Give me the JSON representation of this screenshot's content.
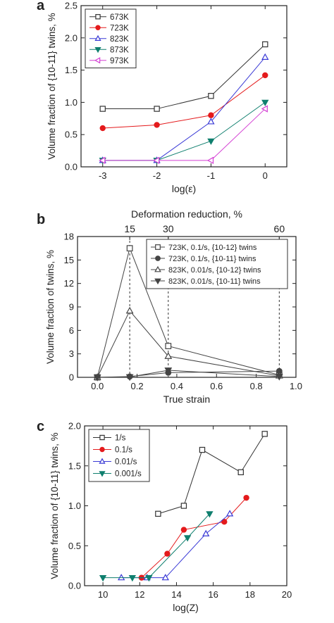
{
  "chart_data": [
    {
      "panel_label": "a",
      "type": "line",
      "xlabel": "log(ε)",
      "ylabel": "Volume fraction of {10-11} twins, %",
      "xlim": [
        -3.4,
        0.4
      ],
      "ylim": [
        0,
        2.5
      ],
      "xticks": [
        -3,
        -2,
        -1,
        0
      ],
      "xtick_labels": [
        "-3",
        "-2",
        "-1",
        "0"
      ],
      "yticks": [
        0,
        0.5,
        1.0,
        1.5,
        2.0,
        2.5
      ],
      "ytick_labels": [
        "0.0",
        "0.5",
        "1.0",
        "1.5",
        "2.0",
        "2.5"
      ],
      "legend_position": "top-left",
      "grid": false,
      "series": [
        {
          "name": "673K",
          "color": "#333333",
          "marker": "square-open",
          "x": [
            -3,
            -2,
            -1,
            0
          ],
          "y": [
            0.9,
            0.9,
            1.1,
            1.9
          ]
        },
        {
          "name": "723K",
          "color": "#e41a1c",
          "marker": "circle-filled",
          "x": [
            -3,
            -2,
            -1,
            0
          ],
          "y": [
            0.6,
            0.65,
            0.8,
            1.42
          ]
        },
        {
          "name": "823K",
          "color": "#3a3ad6",
          "marker": "triangle-up-open",
          "x": [
            -3,
            -2,
            -1,
            0
          ],
          "y": [
            0.1,
            0.1,
            0.7,
            1.7
          ]
        },
        {
          "name": "873K",
          "color": "#0f7f6e",
          "marker": "triangle-down-filled",
          "x": [
            -3,
            -2,
            -1,
            0
          ],
          "y": [
            0.1,
            0.1,
            0.4,
            1.0
          ]
        },
        {
          "name": "973K",
          "color": "#d43fd4",
          "marker": "triangle-left-open",
          "x": [
            -3,
            -2,
            -1,
            0
          ],
          "y": [
            0.1,
            0.1,
            0.1,
            0.9
          ]
        }
      ]
    },
    {
      "panel_label": "b",
      "type": "line",
      "xlabel": "True strain",
      "ylabel": "Volume fraction of twins, %",
      "top_axis_label": "Deformation reduction, %",
      "top_ticks": [
        {
          "x": 0.163,
          "label": "15"
        },
        {
          "x": 0.357,
          "label": "30"
        },
        {
          "x": 0.916,
          "label": "60"
        }
      ],
      "xlim": [
        -0.1,
        1.0
      ],
      "ylim": [
        0,
        18
      ],
      "xticks": [
        0.0,
        0.2,
        0.4,
        0.6,
        0.8,
        1.0
      ],
      "xtick_labels": [
        "0.0",
        "0.2",
        "0.4",
        "0.6",
        "0.8",
        "1.0"
      ],
      "yticks": [
        0,
        3,
        6,
        9,
        12,
        15,
        18
      ],
      "ytick_labels": [
        "0",
        "3",
        "6",
        "9",
        "12",
        "15",
        "18"
      ],
      "legend_position": "top-right",
      "grid": false,
      "series": [
        {
          "name": "723K, 0.1/s, {10-12} twins",
          "color": "#444444",
          "marker": "square-open",
          "x": [
            0,
            0.163,
            0.357,
            0.916
          ],
          "y": [
            0,
            16.5,
            4.0,
            0.3
          ]
        },
        {
          "name": "723K, 0.1/s, {10-11} twins",
          "color": "#444444",
          "marker": "circle-filled",
          "x": [
            0,
            0.163,
            0.357,
            0.916
          ],
          "y": [
            0,
            0.1,
            0.6,
            0.8
          ]
        },
        {
          "name": "823K, 0.01/s, {10-12} twins",
          "color": "#444444",
          "marker": "triangle-up-open",
          "x": [
            0,
            0.163,
            0.357,
            0.916
          ],
          "y": [
            0,
            8.5,
            2.7,
            0.2
          ]
        },
        {
          "name": "823K, 0.01/s, {10-11} twins",
          "color": "#444444",
          "marker": "triangle-down-filled",
          "x": [
            0,
            0.163,
            0.357,
            0.916
          ],
          "y": [
            0,
            0.05,
            0.9,
            0.1
          ]
        }
      ]
    },
    {
      "panel_label": "c",
      "type": "line",
      "xlabel": "log(Z)",
      "ylabel": "Volume fraction of {10-11} twins, %",
      "xlim": [
        9,
        20
      ],
      "ylim": [
        0,
        2.0
      ],
      "xticks": [
        10,
        12,
        14,
        16,
        18,
        20
      ],
      "xtick_labels": [
        "10",
        "12",
        "14",
        "16",
        "18",
        "20"
      ],
      "yticks": [
        0,
        0.5,
        1.0,
        1.5,
        2.0
      ],
      "ytick_labels": [
        "0.0",
        "0.5",
        "1.0",
        "1.5",
        "2.0"
      ],
      "legend_position": "top-left",
      "grid": false,
      "series": [
        {
          "name": "1/s",
          "color": "#333333",
          "marker": "square-open",
          "x": [
            13.0,
            14.4,
            15.4,
            17.5,
            18.8
          ],
          "y": [
            0.9,
            1.0,
            1.7,
            1.42,
            1.9
          ]
        },
        {
          "name": "0.1/s",
          "color": "#e41a1c",
          "marker": "circle-filled",
          "x": [
            12.1,
            13.5,
            14.4,
            16.6,
            17.8
          ],
          "y": [
            0.1,
            0.4,
            0.7,
            0.8,
            1.1
          ]
        },
        {
          "name": "0.01/s",
          "color": "#3a3ad6",
          "marker": "triangle-up-open",
          "x": [
            11.0,
            12.4,
            13.4,
            15.6,
            16.9
          ],
          "y": [
            0.1,
            0.1,
            0.1,
            0.65,
            0.9
          ]
        },
        {
          "name": "0.001/s",
          "color": "#0f7f6e",
          "marker": "triangle-down-filled",
          "x": [
            10.0,
            11.6,
            12.5,
            14.6,
            15.8
          ],
          "y": [
            0.1,
            0.1,
            0.1,
            0.6,
            0.9
          ]
        }
      ]
    }
  ]
}
